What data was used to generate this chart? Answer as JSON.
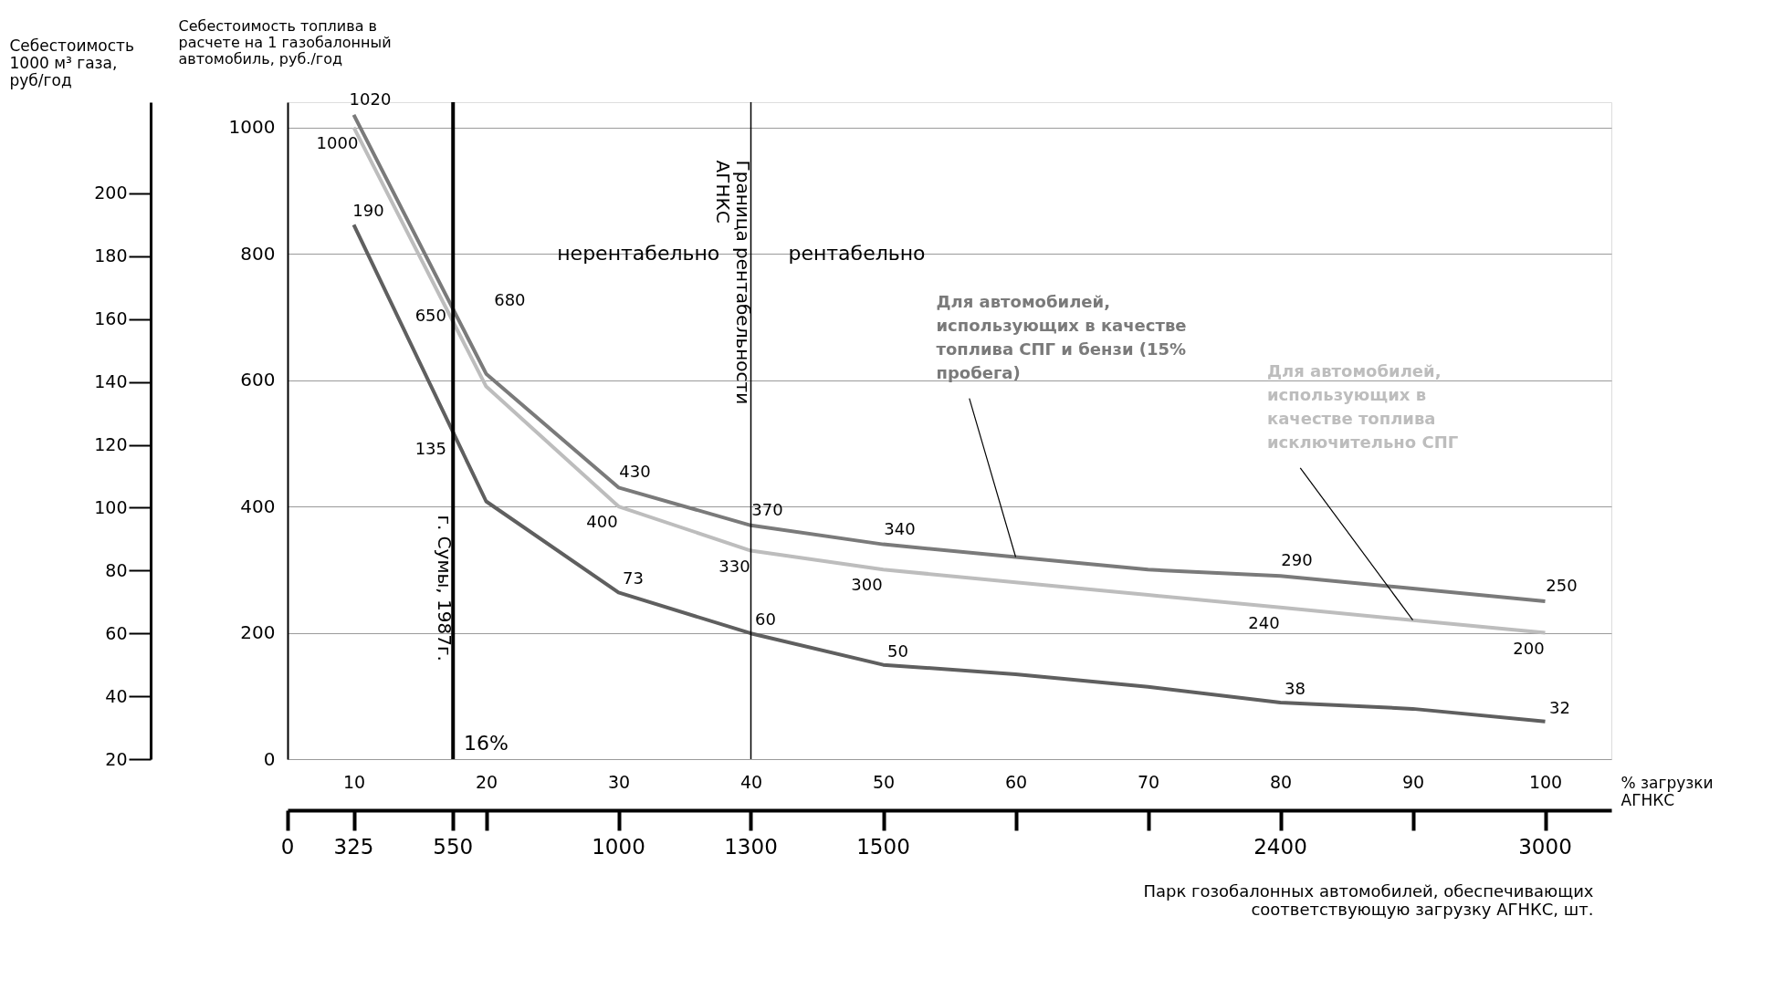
{
  "chart_data": {
    "type": "line",
    "ylabel": "Себестоимость топлива в расчете на 1 газобалонный автомобиль, руб./год",
    "y2label": "Себестоимость 1000 м³ газа, руб/год",
    "xlabel": "% загрузки АГНКС",
    "x2label": "Парк гозобалонных автомобилей, обеспечивающих соответствующую загрузку АГНКС, шт.",
    "x": [
      10,
      20,
      30,
      40,
      50,
      60,
      70,
      80,
      90,
      100
    ],
    "xlim": [
      5,
      105
    ],
    "xticks": [
      10,
      20,
      30,
      40,
      50,
      60,
      70,
      80,
      90,
      100
    ],
    "ylim": [
      0,
      1040
    ],
    "yticks": [
      0,
      200,
      400,
      600,
      800,
      1000
    ],
    "y2lim": [
      20,
      229
    ],
    "y2ticks": [
      20,
      40,
      60,
      80,
      100,
      120,
      140,
      160,
      180,
      200
    ],
    "grid": "y",
    "marker": "none",
    "line_style": "solid",
    "series": [
      {
        "name": "Для автомобилей, использующих в качестве топлива СПГ и бензи (15% пробега)",
        "color": "#7a7a7a",
        "values": [
          1020,
          610,
          430,
          370,
          340,
          320,
          300,
          290,
          270,
          250
        ],
        "value_labels": [
          "1020",
          null,
          "430",
          "370",
          "340",
          null,
          null,
          "290",
          null,
          "250"
        ]
      },
      {
        "name": "Для автомобилей, использующих в качестве топлива исключительно СПГ",
        "color": "#bdbdbd",
        "values": [
          1000,
          590,
          400,
          330,
          300,
          280,
          260,
          240,
          220,
          200
        ],
        "value_labels": [
          "1000",
          null,
          "400",
          "330",
          "300",
          null,
          null,
          "240",
          null,
          "200"
        ]
      },
      {
        "axis": "y2",
        "color": "#5f5f5f",
        "values": [
          190,
          102,
          73,
          60,
          50,
          47,
          43,
          38,
          36,
          32
        ],
        "value_labels": [
          "190",
          null,
          "73",
          "60",
          "50",
          null,
          null,
          "38",
          null,
          "32"
        ]
      }
    ],
    "ref_lines": [
      {
        "axis": "x",
        "value": 17.5,
        "label": "г. Сумы, 1987г.",
        "color": "#000000"
      },
      {
        "axis": "x",
        "value": 40,
        "label": "Граница рентабельности АГНКС",
        "color": "#000000"
      }
    ],
    "annotations": [
      "680",
      "650",
      "135",
      "16%",
      "нерентабельно",
      "рентабельно",
      "0",
      "325",
      "550",
      "1000",
      "1300",
      "1500",
      "2400",
      "3000"
    ]
  }
}
